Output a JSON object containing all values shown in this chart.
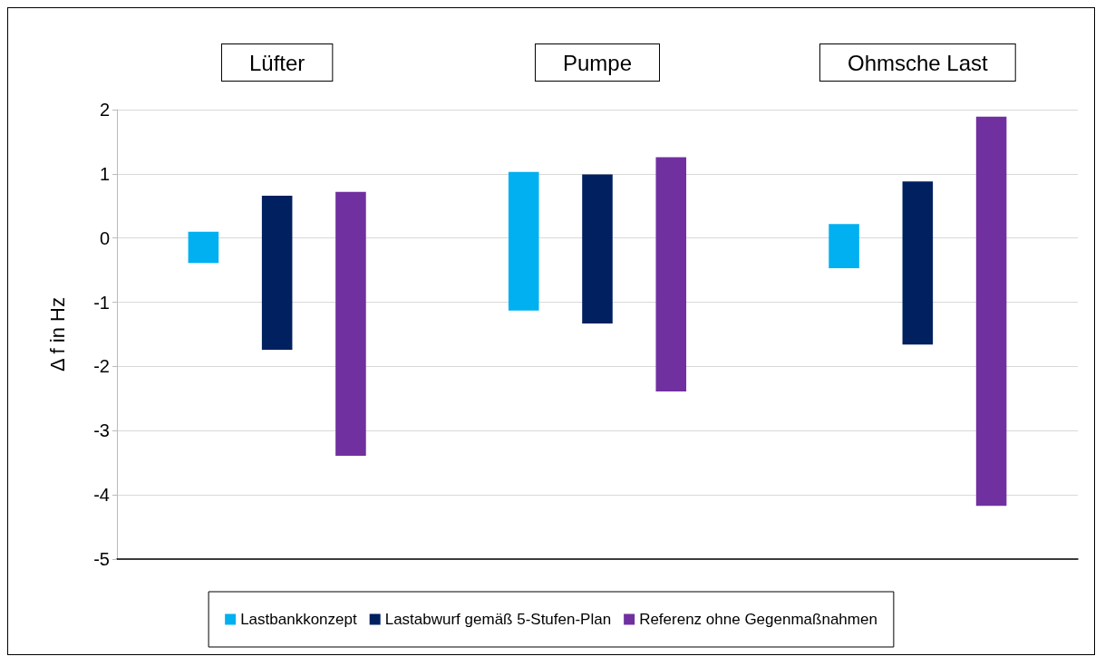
{
  "chart_data": {
    "type": "bar",
    "ylabel": "Δ f in Hz",
    "categories": [
      "Lüfter",
      "Pumpe",
      "Ohmsche Last"
    ],
    "series": [
      {
        "name": "Lastbankkonzept",
        "color": "#00b0f0",
        "base": [
          -0.39,
          -1.13,
          -0.47
        ],
        "values": [
          0.49,
          2.16,
          0.69
        ]
      },
      {
        "name": "Lastabwurf gemäß 5-Stufen-Plan",
        "color": "#002060",
        "base": [
          -1.74,
          -1.33,
          -1.66
        ],
        "values": [
          2.4,
          2.32,
          2.54
        ]
      },
      {
        "name": "Referenz ohne Gegenmaßnahmen",
        "color": "#7030a0",
        "base": [
          -3.39,
          -2.39,
          -4.17
        ],
        "values": [
          4.11,
          3.65,
          6.06
        ]
      }
    ],
    "ylim": [
      -5,
      2
    ],
    "yticks": [
      -5,
      -4,
      -3,
      -2,
      -1,
      0,
      1,
      2
    ],
    "grid": "y",
    "legend": "bottom"
  }
}
